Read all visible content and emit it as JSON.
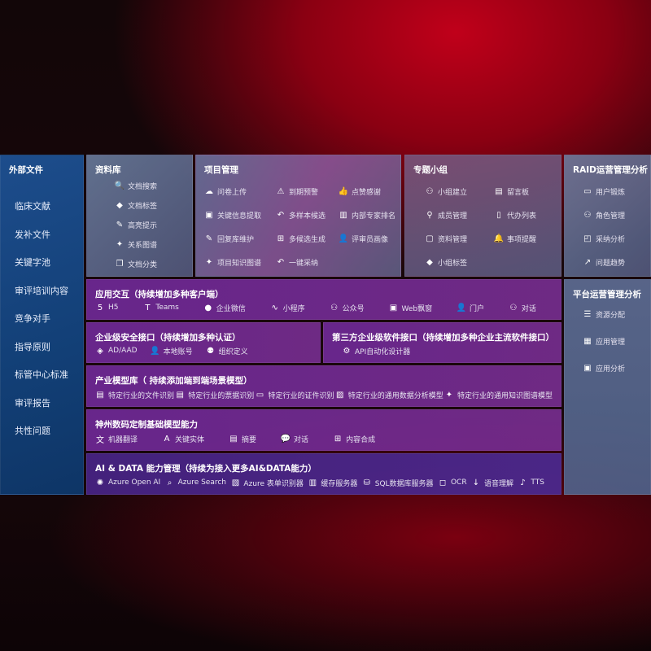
{
  "external": {
    "title": "外部文件",
    "items": [
      "临床文献",
      "发补文件",
      "关键字池",
      "审评培训内容",
      "竞争对手",
      "指导原则",
      "标管中心标准",
      "审评报告",
      "共性问题"
    ]
  },
  "library": {
    "title": "资料库",
    "items": [
      {
        "label": "文档搜索",
        "icon": "doc-search-icon"
      },
      {
        "label": "文档标签",
        "icon": "tag-icon"
      },
      {
        "label": "高亮提示",
        "icon": "pen-icon"
      },
      {
        "label": "关系图谱",
        "icon": "graph-icon"
      },
      {
        "label": "文档分类",
        "icon": "doc-stack-icon"
      }
    ]
  },
  "project": {
    "title": "项目管理",
    "items": [
      {
        "label": "问卷上传",
        "icon": "cloud-upload-icon"
      },
      {
        "label": "到期预警",
        "icon": "alarm-icon"
      },
      {
        "label": "点赞感谢",
        "icon": "thumbs-up-icon"
      },
      {
        "label": "关键信息提取",
        "icon": "window-icon"
      },
      {
        "label": "多样本候选",
        "icon": "reply-icon"
      },
      {
        "label": "内部专家排名",
        "icon": "ranking-icon"
      },
      {
        "label": "回复库维护",
        "icon": "edit-icon"
      },
      {
        "label": "多候选生成",
        "icon": "puzzle-icon"
      },
      {
        "label": "评审员画像",
        "icon": "user-icon"
      },
      {
        "label": "项目知识图谱",
        "icon": "graph-icon"
      },
      {
        "label": "一键采纳",
        "icon": "reply-icon"
      }
    ]
  },
  "group": {
    "title": "专题小组",
    "items": [
      {
        "label": "小组建立",
        "icon": "users-icon"
      },
      {
        "label": "留言板",
        "icon": "bbs-icon"
      },
      {
        "label": "成员管理",
        "icon": "user-add-icon"
      },
      {
        "label": "代办列表",
        "icon": "clipboard-icon"
      },
      {
        "label": "资料管理",
        "icon": "folder-icon"
      },
      {
        "label": "事项提醒",
        "icon": "bell-icon"
      },
      {
        "label": "小组标签",
        "icon": "tag-icon"
      }
    ]
  },
  "raid": {
    "title": "RAID运营管理分析",
    "items": [
      {
        "label": "用户锻炼",
        "icon": "id-card-icon"
      },
      {
        "label": "角色管理",
        "icon": "users-icon"
      },
      {
        "label": "采纳分析",
        "icon": "qa-icon"
      },
      {
        "label": "问题趋势",
        "icon": "trend-icon"
      }
    ]
  },
  "platform": {
    "title": "平台运营管理分析",
    "items": [
      {
        "label": "资源分配",
        "icon": "checklist-icon"
      },
      {
        "label": "应用管理",
        "icon": "apps-icon"
      },
      {
        "label": "应用分析",
        "icon": "analysis-icon"
      }
    ]
  },
  "app": {
    "title": "应用交互（持续增加多种客户端）",
    "items": [
      {
        "label": "H5",
        "icon": "html5-icon"
      },
      {
        "label": "Teams",
        "icon": "teams-icon"
      },
      {
        "label": "企业微信",
        "icon": "wecom-icon"
      },
      {
        "label": "小程序",
        "icon": "miniprogram-icon"
      },
      {
        "label": "公众号",
        "icon": "users-icon"
      },
      {
        "label": "Web飘窗",
        "icon": "window-icon"
      },
      {
        "label": "门户",
        "icon": "portal-icon"
      },
      {
        "label": "对话",
        "icon": "chat-users-icon"
      }
    ]
  },
  "security": {
    "title": "企业级安全接口（持续增加多种认证）",
    "items": [
      {
        "label": "AD/AAD",
        "icon": "diamond-icon"
      },
      {
        "label": "本地账号",
        "icon": "user-lock-icon"
      },
      {
        "label": "组织定义",
        "icon": "org-icon"
      }
    ]
  },
  "thirdparty": {
    "title": "第三方企业级软件接口（持续增加多种企业主流软件接口）",
    "items": [
      {
        "label": "API自动化设计器",
        "icon": "gear-icon"
      }
    ]
  },
  "industry": {
    "title": "产业模型库（ 持续添加端到端场景模型）",
    "items": [
      {
        "label": "特定行业的文件识别",
        "icon": "file-icon"
      },
      {
        "label": "特定行业的票据识别",
        "icon": "receipt-icon"
      },
      {
        "label": "特定行业的证件识别",
        "icon": "id-card-icon"
      },
      {
        "label": "特定行业的通用数据分析模型",
        "icon": "image-chart-icon"
      },
      {
        "label": "特定行业的通用知识图谱模型",
        "icon": "graph-icon"
      }
    ]
  },
  "base": {
    "title": "神州数码定制基础模型能力",
    "items": [
      {
        "label": "机器翻译",
        "icon": "translate-icon"
      },
      {
        "label": "关键实体",
        "icon": "entity-icon"
      },
      {
        "label": "摘要",
        "icon": "doc-icon"
      },
      {
        "label": "对话",
        "icon": "chat-icon"
      },
      {
        "label": "内容合成",
        "icon": "puzzle-icon"
      }
    ]
  },
  "ai": {
    "title": "AI & DATA 能力管理（持续为接入更多AI&DATA能力）",
    "items": [
      {
        "label": "Azure Open AI",
        "icon": "openai-icon"
      },
      {
        "label": "Azure Search",
        "icon": "search-doc-icon"
      },
      {
        "label": "Azure 表单识别器",
        "icon": "form-icon"
      },
      {
        "label": "缓存服务器",
        "icon": "cache-icon"
      },
      {
        "label": "SQL数据库服务器",
        "icon": "database-icon"
      },
      {
        "label": "OCR",
        "icon": "ocr-icon"
      },
      {
        "label": "语音理解",
        "icon": "speech-icon"
      },
      {
        "label": "TTS",
        "icon": "tts-icon"
      }
    ]
  }
}
